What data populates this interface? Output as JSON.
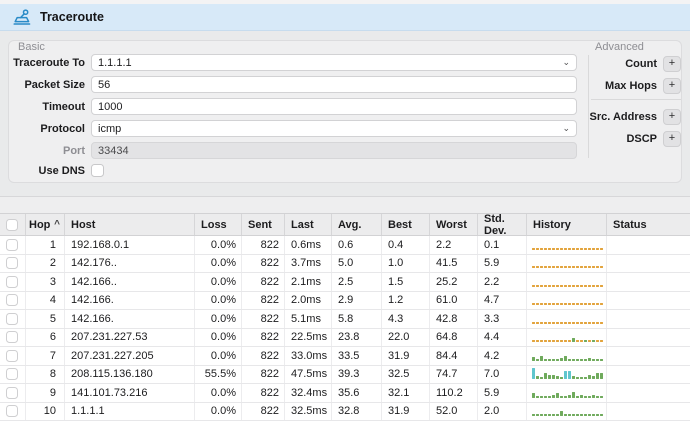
{
  "window": {
    "title": "Traceroute"
  },
  "form": {
    "basic_label": "Basic",
    "advanced_label": "Advanced",
    "combo_chevron": "⌄",
    "fields": [
      {
        "label": "Traceroute To",
        "value": "1.1.1.1"
      },
      {
        "label": "Packet Size",
        "value": "56"
      },
      {
        "label": "Timeout",
        "value": "1000"
      },
      {
        "label": "Protocol",
        "value": "icmp"
      },
      {
        "label": "Port",
        "value": "33434"
      },
      {
        "label": "Use DNS"
      }
    ],
    "advanced_fields": [
      {
        "label": "Count",
        "button": "+"
      },
      {
        "label": "Max Hops",
        "button": "+"
      },
      {
        "label": "Src. Address",
        "button": "+"
      },
      {
        "label": "DSCP",
        "button": "+"
      }
    ]
  },
  "table": {
    "columns": [
      "Hop",
      "Host",
      "Loss",
      "Sent",
      "Last",
      "Avg.",
      "Best",
      "Worst",
      "Std. Dev.",
      "History",
      "Status"
    ],
    "sort": {
      "column": "Hop",
      "direction": "asc",
      "indicator": "^"
    },
    "history_colors": {
      "o": "#e2a33c",
      "g": "#6faa5c",
      "t": "#5fc6ce"
    },
    "rows": [
      {
        "hop": "1",
        "host": "192.168.0.1",
        "loss": "0.0%",
        "sent": "822",
        "last": "0.6ms",
        "avg": "0.6",
        "best": "0.4",
        "worst": "2.2",
        "stddev": "0.1",
        "status": "",
        "history": [
          "o2",
          "o2",
          "o2",
          "o2",
          "o2",
          "o2",
          "o2",
          "o2",
          "o2",
          "o2",
          "o2",
          "o2",
          "o2",
          "o2",
          "o2",
          "o2",
          "o2",
          "o2"
        ]
      },
      {
        "hop": "2",
        "host": "142.176..",
        "loss": "0.0%",
        "sent": "822",
        "last": "3.7ms",
        "avg": "5.0",
        "best": "1.0",
        "worst": "41.5",
        "stddev": "5.9",
        "status": "",
        "history": [
          "o2",
          "o2",
          "o2",
          "o2",
          "o2",
          "o2",
          "o2",
          "o2",
          "o2",
          "o2",
          "o2",
          "o2",
          "o2",
          "o2",
          "o2",
          "o2",
          "o2",
          "o2"
        ]
      },
      {
        "hop": "3",
        "host": "142.166..",
        "loss": "0.0%",
        "sent": "822",
        "last": "2.1ms",
        "avg": "2.5",
        "best": "1.5",
        "worst": "25.2",
        "stddev": "2.2",
        "status": "",
        "history": [
          "o2",
          "o2",
          "o2",
          "o2",
          "o2",
          "o2",
          "o2",
          "o2",
          "o2",
          "o2",
          "o2",
          "o2",
          "o2",
          "o2",
          "o2",
          "o2",
          "o2",
          "o2"
        ]
      },
      {
        "hop": "4",
        "host": "142.166.",
        "loss": "0.0%",
        "sent": "822",
        "last": "2.0ms",
        "avg": "2.9",
        "best": "1.2",
        "worst": "61.0",
        "stddev": "4.7",
        "status": "",
        "history": [
          "o2",
          "o2",
          "o2",
          "o2",
          "o2",
          "o2",
          "o2",
          "o2",
          "o2",
          "o2",
          "o2",
          "o2",
          "o2",
          "o2",
          "o2",
          "o2",
          "o2",
          "o2"
        ]
      },
      {
        "hop": "5",
        "host": "142.166.",
        "loss": "0.0%",
        "sent": "822",
        "last": "5.1ms",
        "avg": "5.8",
        "best": "4.3",
        "worst": "42.8",
        "stddev": "3.3",
        "status": "",
        "history": [
          "o2",
          "o2",
          "o2",
          "o2",
          "o2",
          "o2",
          "o2",
          "o2",
          "o2",
          "o2",
          "o2",
          "o2",
          "o2",
          "o2",
          "o2",
          "o2",
          "o2",
          "o2"
        ]
      },
      {
        "hop": "6",
        "host": "207.231.227.53",
        "loss": "0.0%",
        "sent": "822",
        "last": "22.5ms",
        "avg": "23.8",
        "best": "22.0",
        "worst": "64.8",
        "stddev": "4.4",
        "status": "",
        "history": [
          "o2",
          "o2",
          "o2",
          "o2",
          "o2",
          "o2",
          "o2",
          "o2",
          "o2",
          "o2",
          "g4",
          "o2",
          "o2",
          "g2",
          "o2",
          "g2",
          "o2",
          "o2"
        ]
      },
      {
        "hop": "7",
        "host": "207.231.227.205",
        "loss": "0.0%",
        "sent": "822",
        "last": "33.0ms",
        "avg": "33.5",
        "best": "31.9",
        "worst": "84.4",
        "stddev": "4.2",
        "status": "",
        "history": [
          "g4",
          "g2",
          "g5",
          "g2",
          "g2",
          "g2",
          "g2",
          "g3",
          "g5",
          "g2",
          "g2",
          "g2",
          "g2",
          "g2",
          "g3",
          "g2",
          "g2",
          "g2"
        ]
      },
      {
        "hop": "8",
        "host": "208.115.136.180",
        "loss": "55.5%",
        "sent": "822",
        "last": "47.5ms",
        "avg": "39.3",
        "best": "32.5",
        "worst": "74.7",
        "stddev": "7.0",
        "status": "",
        "history": [
          "t11",
          "g3",
          "g2",
          "g6",
          "g4",
          "g4",
          "g3",
          "g2",
          "t8",
          "t8",
          "g3",
          "g2",
          "g2",
          "g2",
          "g4",
          "g3",
          "g6",
          "g6"
        ]
      },
      {
        "hop": "9",
        "host": "141.101.73.216",
        "loss": "0.0%",
        "sent": "822",
        "last": "32.4ms",
        "avg": "35.6",
        "best": "32.1",
        "worst": "110.2",
        "stddev": "5.9",
        "status": "",
        "history": [
          "g5",
          "g2",
          "g2",
          "g2",
          "g2",
          "g3",
          "g5",
          "g2",
          "g2",
          "g3",
          "g6",
          "g2",
          "g3",
          "g2",
          "g2",
          "g3",
          "g2",
          "g2"
        ]
      },
      {
        "hop": "10",
        "host": "1.1.1.1",
        "loss": "0.0%",
        "sent": "822",
        "last": "32.5ms",
        "avg": "32.8",
        "best": "31.9",
        "worst": "52.0",
        "stddev": "2.0",
        "status": "",
        "history": [
          "g2",
          "g2",
          "g2",
          "g2",
          "g2",
          "g2",
          "g2",
          "g5",
          "g2",
          "g2",
          "g2",
          "g2",
          "g2",
          "g2",
          "g2",
          "g2",
          "g2",
          "g2"
        ]
      }
    ]
  }
}
